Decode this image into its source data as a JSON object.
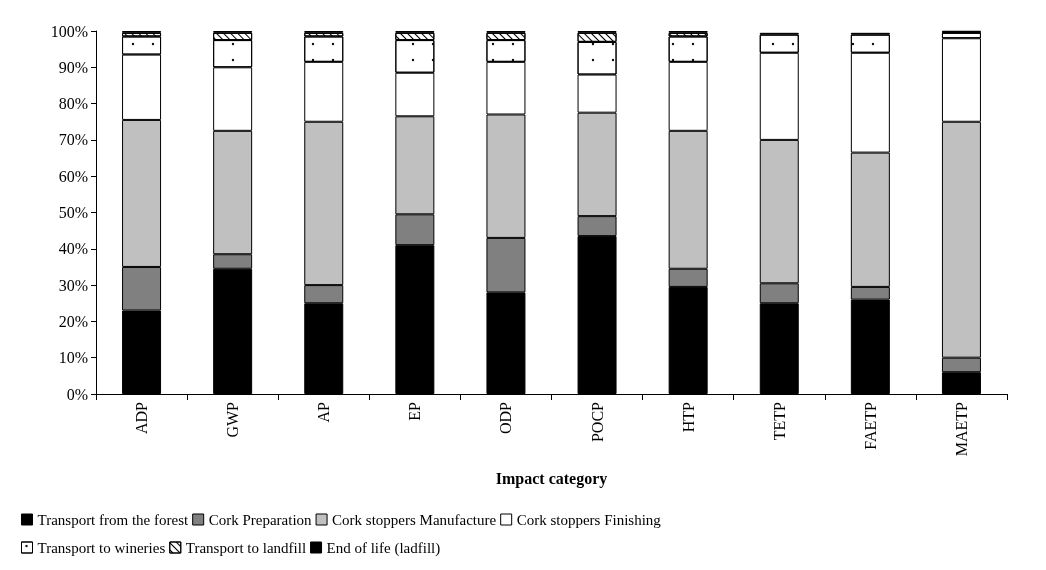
{
  "chart_data": {
    "type": "bar",
    "stacked": true,
    "xlabel": "Impact category",
    "categories": [
      "ADP",
      "GWP",
      "AP",
      "EP",
      "ODP",
      "POCP",
      "HTP",
      "TETP",
      "FAETP",
      "MAETP"
    ],
    "series": [
      {
        "name": "Transport from the forest",
        "color": "#000000",
        "values": [
          23,
          34.5,
          25,
          41,
          28,
          43.5,
          29.5,
          25,
          26,
          6
        ]
      },
      {
        "name": "Cork Preparation",
        "color": "#808080",
        "values": [
          12,
          4,
          5,
          8.5,
          15,
          5.5,
          5,
          5.5,
          3.5,
          4
        ]
      },
      {
        "name": "Cork stoppers Manufacture",
        "color": "#c0c0c0",
        "values": [
          40.5,
          34,
          45,
          27,
          34,
          28.5,
          38,
          39.5,
          37,
          65
        ]
      },
      {
        "name": "Cork stoppers Finishing",
        "color": "#ffffff",
        "values": [
          18,
          17.5,
          16.5,
          12,
          14.5,
          10.5,
          19,
          24,
          27.5,
          23
        ]
      },
      {
        "name": "Transport to wineries",
        "color": "#ffffff",
        "values": [
          5,
          7.5,
          7,
          9,
          6,
          9,
          7,
          5,
          5,
          1.5
        ]
      },
      {
        "name": "Transport to landfill",
        "color": "#ffffff",
        "values": [
          1,
          2,
          1,
          2,
          2,
          2.5,
          1,
          null,
          null,
          0.3
        ]
      },
      {
        "name": "End of life (ladfill)",
        "color": "#000000",
        "values": [
          0.5,
          0.5,
          0.5,
          0.5,
          0.5,
          0.5,
          0.5,
          0.5,
          0.5,
          0.2
        ]
      }
    ],
    "ylim": [
      0,
      100
    ],
    "yticks": [
      {
        "value": 0,
        "label": "0%"
      },
      {
        "value": 10,
        "label": "10%"
      },
      {
        "value": 20,
        "label": "20%"
      },
      {
        "value": 30,
        "label": "30%"
      },
      {
        "value": 40,
        "label": "40%"
      },
      {
        "value": 50,
        "label": "50%"
      },
      {
        "value": 60,
        "label": "60%"
      },
      {
        "value": 70,
        "label": "70%"
      },
      {
        "value": 80,
        "label": "80%"
      },
      {
        "value": 90,
        "label": "90%"
      },
      {
        "value": 100,
        "label": "100%"
      }
    ],
    "grid": false,
    "legend": "bottom"
  }
}
